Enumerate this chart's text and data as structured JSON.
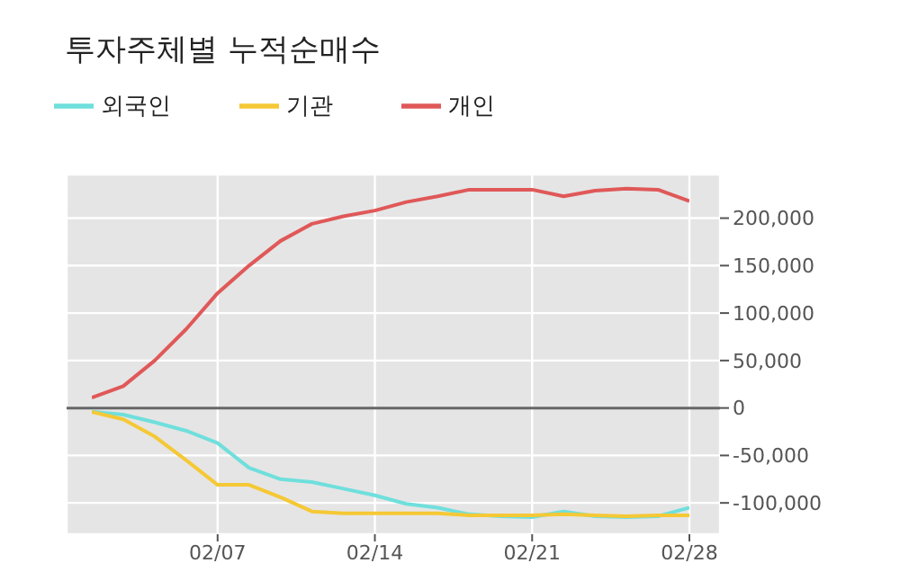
{
  "chart_data": {
    "type": "line",
    "title": "투자주체별 누적순매수",
    "categories": [
      null,
      null,
      null,
      null,
      "02/07",
      null,
      null,
      null,
      null,
      "02/14",
      null,
      null,
      null,
      null,
      "02/21",
      null,
      null,
      null,
      null,
      "02/28"
    ],
    "series": [
      {
        "name": "외국인",
        "color": "#6fdfdc",
        "values": [
          -4000,
          -7000,
          -15000,
          -24000,
          -37000,
          -63000,
          -75000,
          -78000,
          -85000,
          -92000,
          -101000,
          -105000,
          -112000,
          -114000,
          -115000,
          -109000,
          -114000,
          -115000,
          -114000,
          -105000
        ]
      },
      {
        "name": "기관",
        "color": "#f5c835",
        "values": [
          -4000,
          -12000,
          -30000,
          -55000,
          -81000,
          -81000,
          -94000,
          -109000,
          -111000,
          -111000,
          -111000,
          -111000,
          -113000,
          -113000,
          -113000,
          -112000,
          -113000,
          -114000,
          -113000,
          -113000
        ]
      },
      {
        "name": "개인",
        "color": "#e05858",
        "values": [
          11000,
          23000,
          50000,
          83000,
          121000,
          150000,
          176000,
          194000,
          202000,
          208000,
          217000,
          223000,
          230000,
          230000,
          230000,
          223000,
          229000,
          231000,
          230000,
          218000
        ]
      }
    ],
    "ylim": [
      -133000,
      246000
    ],
    "yticks": [
      {
        "value": -100000,
        "label": "-100,000"
      },
      {
        "value": -50000,
        "label": "-50,000"
      },
      0,
      {
        "value": 50000,
        "label": "50,000"
      },
      {
        "value": 100000,
        "label": "100,000"
      },
      {
        "value": 150000,
        "label": "150,000"
      },
      {
        "value": 200000,
        "label": "200,000"
      }
    ],
    "ref_lines": [
      {
        "axis": "y",
        "value": 0,
        "color": "#666666"
      }
    ],
    "grid": true,
    "legend": "top left",
    "marker": "none",
    "line_style": "solid"
  }
}
